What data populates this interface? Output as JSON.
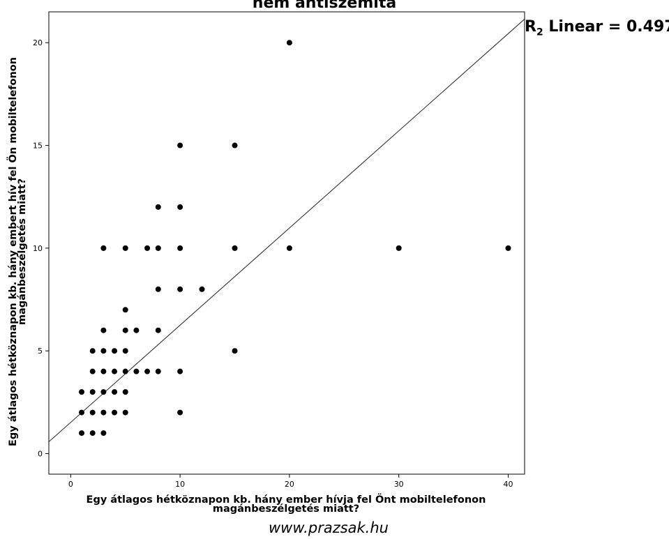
{
  "chart_data": {
    "type": "scatter",
    "title": "nem antiszemita",
    "annotation": {
      "label": "R",
      "subscript": "2",
      "text": "Linear = 0.497"
    },
    "xlabel": [
      "Egy átlagos hétköznapon kb. hány ember hívja fel Önt mobiltelefonon",
      "magánbeszélgetés miatt?"
    ],
    "ylabel": [
      "Egy átlagos hétköznapon kb. hány embert hív fel Ön mobiltelefonon",
      "magánbeszélgetés miatt?"
    ],
    "xlim": [
      -2,
      41.5
    ],
    "ylim": [
      -1,
      21.5
    ],
    "xticks": [
      "0",
      "10",
      "20",
      "30",
      "40"
    ],
    "yticks": [
      "0",
      "5",
      "10",
      "15",
      "20"
    ],
    "grid": false,
    "fit_line": {
      "intercept": 1.52,
      "slope": 0.473
    },
    "points": [
      [
        20,
        20
      ],
      [
        10,
        15
      ],
      [
        15,
        15
      ],
      [
        8,
        12
      ],
      [
        10,
        12
      ],
      [
        3,
        10
      ],
      [
        5,
        10
      ],
      [
        7,
        10
      ],
      [
        8,
        10
      ],
      [
        10,
        10
      ],
      [
        15,
        10
      ],
      [
        20,
        10
      ],
      [
        30,
        10
      ],
      [
        40,
        10
      ],
      [
        8,
        8
      ],
      [
        10,
        8
      ],
      [
        12,
        8
      ],
      [
        5,
        7
      ],
      [
        3,
        6
      ],
      [
        5,
        6
      ],
      [
        6,
        6
      ],
      [
        8,
        6
      ],
      [
        2,
        5
      ],
      [
        3,
        5
      ],
      [
        4,
        5
      ],
      [
        5,
        5
      ],
      [
        15,
        5
      ],
      [
        2,
        4
      ],
      [
        3,
        4
      ],
      [
        4,
        4
      ],
      [
        5,
        4
      ],
      [
        6,
        4
      ],
      [
        7,
        4
      ],
      [
        8,
        4
      ],
      [
        10,
        4
      ],
      [
        1,
        3
      ],
      [
        2,
        3
      ],
      [
        3,
        3
      ],
      [
        4,
        3
      ],
      [
        5,
        3
      ],
      [
        1,
        2
      ],
      [
        2,
        2
      ],
      [
        3,
        2
      ],
      [
        4,
        2
      ],
      [
        5,
        2
      ],
      [
        10,
        2
      ],
      [
        1,
        1
      ],
      [
        2,
        1
      ],
      [
        3,
        1
      ]
    ]
  },
  "watermark": "www.prazsak.hu"
}
